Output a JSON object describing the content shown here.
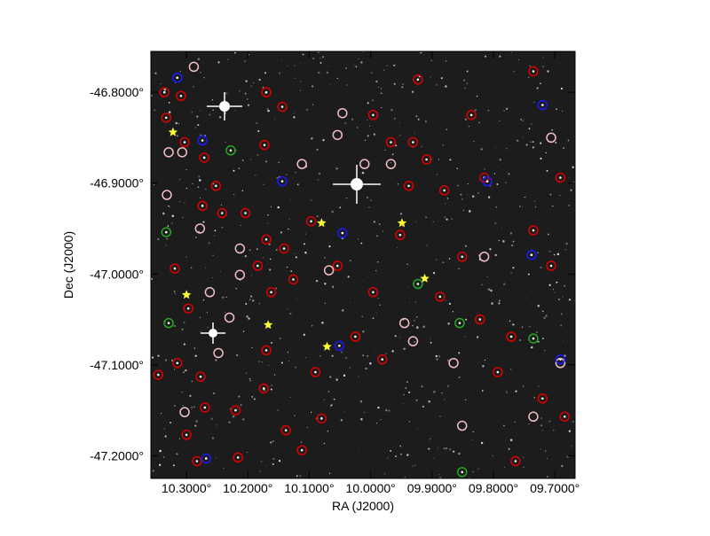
{
  "chart_data": {
    "type": "scatter",
    "xlabel": "RA (J2000)",
    "ylabel": "Dec (J2000)",
    "xlim": [
      10.358,
      9.667
    ],
    "ylim": [
      -47.225,
      -46.755
    ],
    "xticks": [
      {
        "value": 10.3,
        "label": "10.3000°"
      },
      {
        "value": 10.2,
        "label": "10.2000°"
      },
      {
        "value": 10.1,
        "label": "10.1000°"
      },
      {
        "value": 10.0,
        "label": "10.0000°"
      },
      {
        "value": 9.9,
        "label": "09.9000°"
      },
      {
        "value": 9.8,
        "label": "09.8000°"
      },
      {
        "value": 9.7,
        "label": "09.7000°"
      }
    ],
    "yticks": [
      {
        "value": -46.8,
        "label": "-46.8000°"
      },
      {
        "value": -46.9,
        "label": "-46.9000°"
      },
      {
        "value": -47.0,
        "label": "-47.0000°"
      },
      {
        "value": -47.1,
        "label": "-47.1000°"
      },
      {
        "value": -47.2,
        "label": "-47.2000°"
      }
    ],
    "series": [
      {
        "color": "#dd0000",
        "marker": "ring-dot",
        "x": [
          10.336,
          10.309,
          10.333,
          10.303,
          10.271,
          10.252,
          10.274,
          10.242,
          10.204,
          10.319,
          10.297,
          10.315,
          10.346,
          10.277,
          10.27,
          10.22,
          10.3,
          10.283,
          10.216,
          10.17,
          10.144,
          10.173,
          10.17,
          10.141,
          10.184,
          10.162,
          10.126,
          10.17,
          10.174,
          10.138,
          10.112,
          10.09,
          10.08,
          10.025,
          9.981,
          9.952,
          9.938,
          9.931,
          9.909,
          9.88,
          9.851,
          9.887,
          9.822,
          9.793,
          9.735,
          9.706,
          9.771,
          9.72,
          9.684,
          9.764,
          9.691,
          9.815,
          9.996,
          9.967,
          9.923,
          9.836,
          9.735,
          10.097,
          10.054,
          9.996
        ],
        "values": [
          -46.8,
          -46.804,
          -46.828,
          -46.855,
          -46.872,
          -46.903,
          -46.925,
          -46.933,
          -46.933,
          -46.994,
          -47.038,
          -47.098,
          -47.111,
          -47.113,
          -47.147,
          -47.15,
          -47.177,
          -47.206,
          -47.202,
          -46.8,
          -46.816,
          -46.858,
          -46.962,
          -46.972,
          -46.991,
          -47.02,
          -47.006,
          -47.084,
          -47.126,
          -47.172,
          -47.194,
          -47.108,
          -47.159,
          -47.069,
          -47.094,
          -46.957,
          -46.903,
          -46.855,
          -46.874,
          -46.908,
          -46.981,
          -47.025,
          -47.05,
          -47.108,
          -46.952,
          -46.991,
          -47.069,
          -47.137,
          -47.157,
          -47.206,
          -46.894,
          -46.894,
          -46.825,
          -46.855,
          -46.786,
          -46.825,
          -46.777,
          -46.942,
          -46.991,
          -47.02
        ]
      },
      {
        "color": "#f4c0c8",
        "marker": "ring",
        "x": [
          10.288,
          10.329,
          10.307,
          10.332,
          10.278,
          10.262,
          10.23,
          10.248,
          10.303,
          10.213,
          10.213,
          10.112,
          10.046,
          10.054,
          10.01,
          10.068,
          9.967,
          9.945,
          9.931,
          9.851,
          9.865,
          9.815,
          9.735,
          9.691,
          9.706
        ],
        "values": [
          -46.772,
          -46.866,
          -46.866,
          -46.913,
          -46.95,
          -47.02,
          -47.048,
          -47.087,
          -47.152,
          -46.972,
          -47.001,
          -46.879,
          -46.823,
          -46.847,
          -46.879,
          -46.996,
          -46.879,
          -47.054,
          -47.074,
          -47.167,
          -47.098,
          -46.981,
          -47.157,
          -47.098,
          -46.85
        ]
      },
      {
        "color": "#1a1aff",
        "marker": "ring-dot",
        "x": [
          10.315,
          10.274,
          10.144,
          10.046,
          10.051,
          9.81,
          9.738,
          9.72,
          9.691,
          10.268
        ],
        "values": [
          -46.784,
          -46.853,
          -46.898,
          -46.955,
          -47.079,
          -46.898,
          -46.979,
          -46.814,
          -47.094,
          -47.203
        ]
      },
      {
        "color": "#22aa22",
        "marker": "ring-dot",
        "x": [
          10.333,
          10.329,
          10.228,
          9.923,
          9.855,
          9.851,
          9.735
        ],
        "values": [
          -46.954,
          -47.054,
          -46.864,
          -47.011,
          -47.054,
          -47.218,
          -47.071
        ]
      },
      {
        "color": "#ffff33",
        "marker": "star",
        "x": [
          10.322,
          10.3,
          10.167,
          10.08,
          9.949,
          9.912,
          10.071
        ],
        "values": [
          -46.844,
          -47.023,
          -47.056,
          -46.944,
          -46.944,
          -47.005,
          -47.08
        ]
      }
    ]
  }
}
